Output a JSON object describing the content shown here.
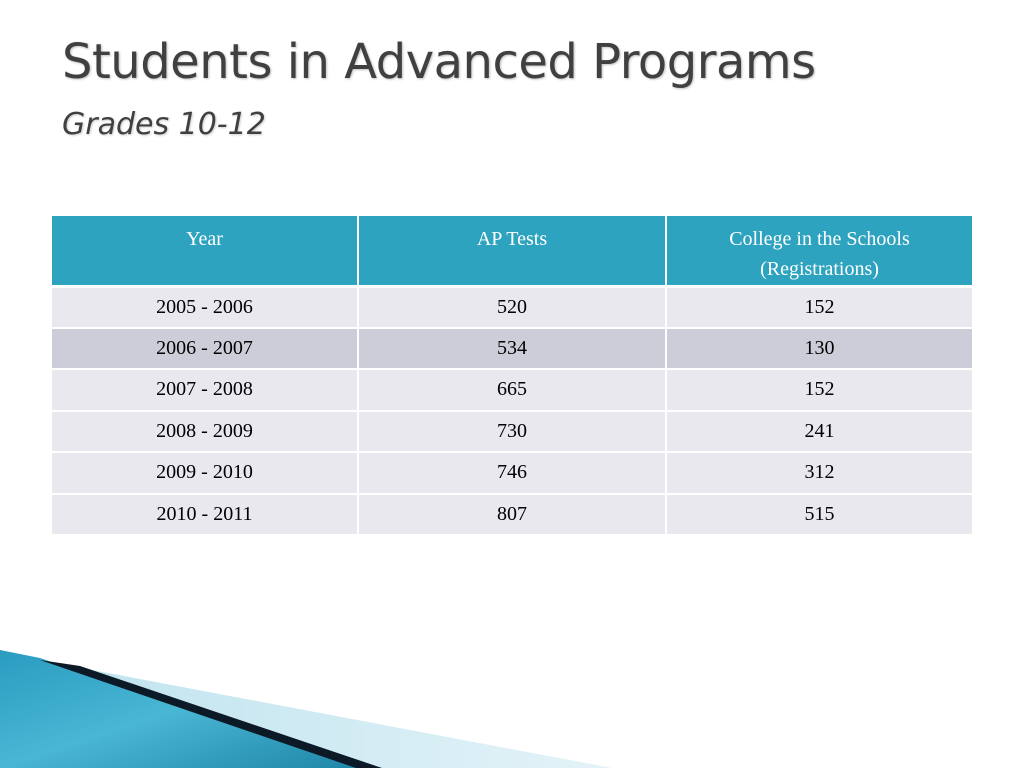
{
  "slide": {
    "title": "Students in Advanced Programs",
    "subtitle": "Grades 10-12"
  },
  "table": {
    "headers": [
      "Year",
      "AP Tests",
      "College in the Schools (Registrations)"
    ],
    "rows": [
      [
        "2005 - 2006",
        "520",
        "152"
      ],
      [
        "2006 - 2007",
        "534",
        "130"
      ],
      [
        "2007 - 2008",
        "665",
        "152"
      ],
      [
        "2008 - 2009",
        "730",
        "241"
      ],
      [
        "2009 - 2010",
        "746",
        "312"
      ],
      [
        "2010 - 2011",
        "807",
        "515"
      ]
    ]
  },
  "colors": {
    "header_background": "#2ea3c0",
    "row_light": "#e9e8ef",
    "row_dark": "#cdcdda",
    "title_text": "#404040",
    "decor_teal": "#1e8fb0",
    "decor_dark": "#0b1a26"
  }
}
